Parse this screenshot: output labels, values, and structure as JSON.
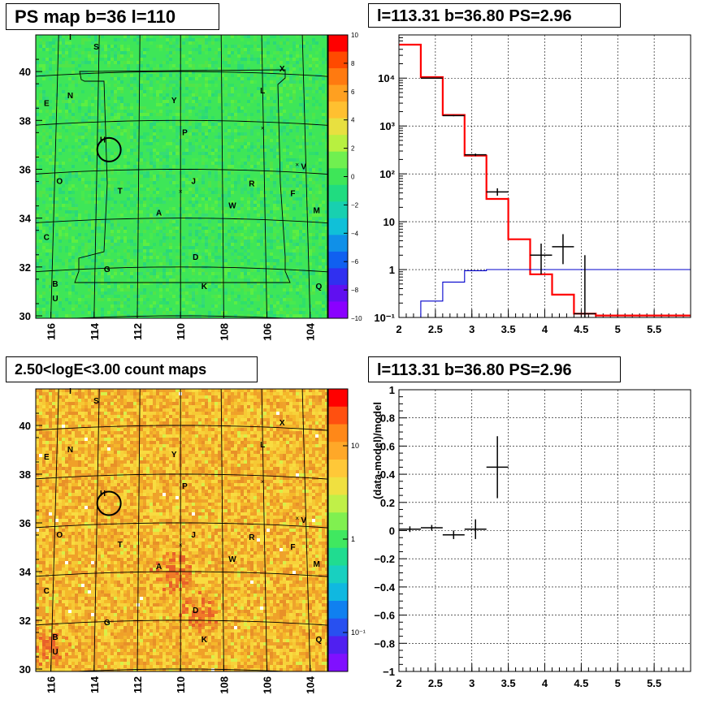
{
  "panels": {
    "ps_map": {
      "title": "PS map b=36 l=110"
    },
    "spectrum": {
      "title": "l=113.31 b=36.80 PS=2.96"
    },
    "count_map": {
      "title": "2.50<logE<3.00 count maps"
    },
    "residual": {
      "title": "l=113.31 b=36.80 PS=2.96"
    }
  },
  "chart_data": [
    {
      "type": "heatmap",
      "name": "ps-map",
      "title": "PS map b=36 l=110",
      "xlabel": "",
      "ylabel": "",
      "x_ticks": [
        "116",
        "114",
        "112",
        "110",
        "108",
        "106",
        "104"
      ],
      "y_ticks": [
        "30",
        "32",
        "34",
        "36",
        "38",
        "40"
      ],
      "xlim": [
        116.7,
        103.2
      ],
      "ylim": [
        29.9,
        41.5
      ],
      "colorbar": {
        "min": -10,
        "max": 10,
        "ticks": [
          "10",
          "8",
          "6",
          "4",
          "2",
          "0",
          "−2",
          "−4",
          "−6",
          "−8",
          "−10"
        ]
      },
      "colors": {
        "dominant": "#33e655",
        "marker": "#000000"
      },
      "source_labels": [
        {
          "text": "I",
          "l": 115.1,
          "b": 41.3
        },
        {
          "text": "S",
          "l": 113.9,
          "b": 40.9
        },
        {
          "text": "X",
          "l": 105.3,
          "b": 40.0
        },
        {
          "text": "L",
          "l": 106.2,
          "b": 39.1
        },
        {
          "text": "E",
          "l": 116.2,
          "b": 38.6
        },
        {
          "text": "N",
          "l": 115.1,
          "b": 38.9
        },
        {
          "text": "Y",
          "l": 110.3,
          "b": 38.7
        },
        {
          "text": "P",
          "l": 109.8,
          "b": 37.4
        },
        {
          "text": "H",
          "l": 113.6,
          "b": 37.1
        },
        {
          "text": "V",
          "l": 104.3,
          "b": 36.0
        },
        {
          "text": "O",
          "l": 115.6,
          "b": 35.4
        },
        {
          "text": "T",
          "l": 112.8,
          "b": 35.0
        },
        {
          "text": "J",
          "l": 109.4,
          "b": 35.4
        },
        {
          "text": "R",
          "l": 106.7,
          "b": 35.3
        },
        {
          "text": "F",
          "l": 104.8,
          "b": 34.9
        },
        {
          "text": "W",
          "l": 107.6,
          "b": 34.4
        },
        {
          "text": "M",
          "l": 103.7,
          "b": 34.2
        },
        {
          "text": "A",
          "l": 111.0,
          "b": 34.1
        },
        {
          "text": "C",
          "l": 116.2,
          "b": 33.1
        },
        {
          "text": "D",
          "l": 109.3,
          "b": 32.3
        },
        {
          "text": "G",
          "l": 113.4,
          "b": 31.8
        },
        {
          "text": "K",
          "l": 108.9,
          "b": 31.1
        },
        {
          "text": "Q",
          "l": 103.6,
          "b": 31.1
        },
        {
          "text": "B",
          "l": 115.8,
          "b": 31.2
        },
        {
          "text": "U",
          "l": 115.8,
          "b": 30.6
        }
      ],
      "circle": {
        "l": 113.31,
        "b": 36.8
      }
    },
    {
      "type": "line",
      "name": "spectrum",
      "title": "l=113.31 b=36.80 PS=2.96",
      "xlabel": "",
      "ylabel": "",
      "y_scale": "log",
      "xlim": [
        2.0,
        6.0
      ],
      "ylim": [
        0.1,
        80000
      ],
      "x_ticks": [
        "2",
        "2.5",
        "3",
        "3.5",
        "4",
        "4.5",
        "5",
        "5.5"
      ],
      "y_ticks": [
        "10⁻¹",
        "1",
        "10",
        "10²",
        "10³",
        "10⁴"
      ],
      "grid": true,
      "series": [
        {
          "type": "step",
          "color": "#ff0000",
          "edges": [
            2.0,
            2.3,
            2.6,
            2.9,
            3.2,
            3.5,
            3.8,
            4.1,
            4.4,
            4.7,
            6.0
          ],
          "values": [
            50000,
            10500,
            1700,
            240,
            30,
            4.3,
            0.8,
            0.3,
            0.12,
            0.11
          ]
        },
        {
          "type": "step",
          "color": "#0000cc",
          "edges": [
            2.0,
            2.3,
            2.6,
            2.9,
            3.2,
            3.5,
            3.8,
            4.1,
            4.4,
            4.7,
            6.0
          ],
          "values": [
            0.07,
            0.22,
            0.55,
            0.95,
            1.0,
            1.0,
            1.0,
            1.0,
            1.0,
            1.0
          ]
        },
        {
          "type": "errorbar",
          "color": "#000000",
          "points": [
            {
              "x": 2.45,
              "y": 10000,
              "xerr": 0.15,
              "ylo": 9900,
              "yhi": 10100
            },
            {
              "x": 2.75,
              "y": 1650,
              "xerr": 0.15,
              "ylo": 1600,
              "yhi": 1700
            },
            {
              "x": 3.05,
              "y": 250,
              "xerr": 0.15,
              "ylo": 235,
              "yhi": 265
            },
            {
              "x": 3.35,
              "y": 42,
              "xerr": 0.15,
              "ylo": 35,
              "yhi": 50
            },
            {
              "x": 3.95,
              "y": 2.0,
              "xerr": 0.15,
              "ylo": 0.8,
              "yhi": 3.5
            },
            {
              "x": 4.25,
              "y": 3.0,
              "xerr": 0.15,
              "ylo": 1.3,
              "yhi": 5.5
            },
            {
              "x": 4.55,
              "y": 0.12,
              "xerr": 0.15,
              "ylo": 0.1,
              "yhi": 2.0
            }
          ]
        }
      ]
    },
    {
      "type": "heatmap",
      "name": "count-map",
      "title": "2.50<logE<3.00 count maps",
      "xlabel": "",
      "ylabel": "",
      "x_ticks": [
        "116",
        "114",
        "112",
        "110",
        "108",
        "106",
        "104"
      ],
      "y_ticks": [
        "30",
        "32",
        "34",
        "36",
        "38",
        "40"
      ],
      "xlim": [
        116.7,
        103.2
      ],
      "ylim": [
        29.9,
        41.5
      ],
      "colorbar": {
        "scale": "log",
        "ticks": [
          "10",
          "1",
          "10⁻¹"
        ]
      },
      "colors": {
        "dominant": "#f0b030",
        "marker": "#000000"
      },
      "hotspots": [
        {
          "label": "A",
          "l": 110.5,
          "b": 34.0
        },
        {
          "label": "D",
          "l": 109.2,
          "b": 32.3
        },
        {
          "label": "B",
          "l": 116.2,
          "b": 31.0
        }
      ],
      "circle": {
        "l": 113.31,
        "b": 36.8
      }
    },
    {
      "type": "scatter",
      "name": "residual",
      "title": "l=113.31 b=36.80 PS=2.96",
      "xlabel": "",
      "ylabel": "(data-model)/model",
      "xlim": [
        2.0,
        6.0
      ],
      "ylim": [
        -1.0,
        1.0
      ],
      "x_ticks": [
        "2",
        "2.5",
        "3",
        "3.5",
        "4",
        "4.5",
        "5",
        "5.5"
      ],
      "y_ticks": [
        "−1",
        "−0.8",
        "−0.6",
        "−0.4",
        "−0.2",
        "0",
        "0.2",
        "0.4",
        "0.6",
        "0.8",
        "1"
      ],
      "grid": true,
      "points": [
        {
          "x": 2.15,
          "y": 0.01,
          "xerr": 0.15,
          "yerr": 0.02
        },
        {
          "x": 2.45,
          "y": 0.02,
          "xerr": 0.15,
          "yerr": 0.02
        },
        {
          "x": 2.75,
          "y": -0.03,
          "xerr": 0.15,
          "yerr": 0.03
        },
        {
          "x": 3.05,
          "y": 0.01,
          "xerr": 0.15,
          "yerr": 0.07
        },
        {
          "x": 3.35,
          "y": 0.45,
          "xerr": 0.15,
          "yerr": 0.22
        }
      ]
    }
  ]
}
